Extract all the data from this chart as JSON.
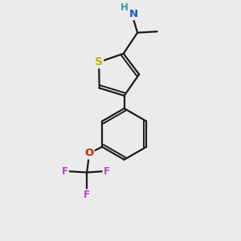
{
  "background_color": "#ebebeb",
  "bond_color": "#1a1a1a",
  "S_color": "#b8b800",
  "N_color": "#1a5cb8",
  "O_color": "#cc2200",
  "F_color": "#bb44bb",
  "H_color": "#3a9999",
  "figsize": [
    3.0,
    3.0
  ],
  "dpi": 100,
  "xlim": [
    0,
    10
  ],
  "ylim": [
    0,
    10
  ]
}
